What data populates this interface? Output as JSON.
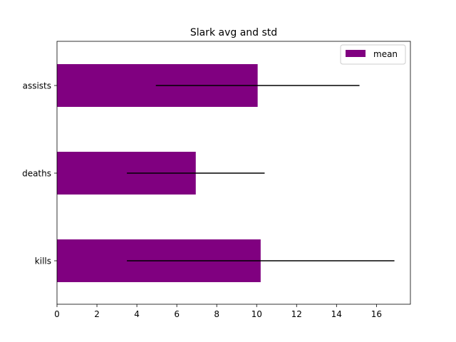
{
  "chart_data": {
    "type": "bar",
    "orientation": "horizontal",
    "title": "Slark avg and std",
    "xlabel": "",
    "ylabel": "",
    "categories": [
      "kills",
      "deaths",
      "assists"
    ],
    "series": [
      {
        "name": "mean",
        "values": [
          10.2,
          6.95,
          10.05
        ],
        "error": [
          6.7,
          3.45,
          5.1
        ],
        "color": "#800080"
      }
    ],
    "xlim": [
      0,
      17.7
    ],
    "xticks": [
      "0",
      "2",
      "4",
      "6",
      "8",
      "10",
      "12",
      "14",
      "16"
    ],
    "legend": {
      "position": "top-right",
      "entries": [
        "mean"
      ]
    },
    "grid": false,
    "error_color": "#000000"
  }
}
